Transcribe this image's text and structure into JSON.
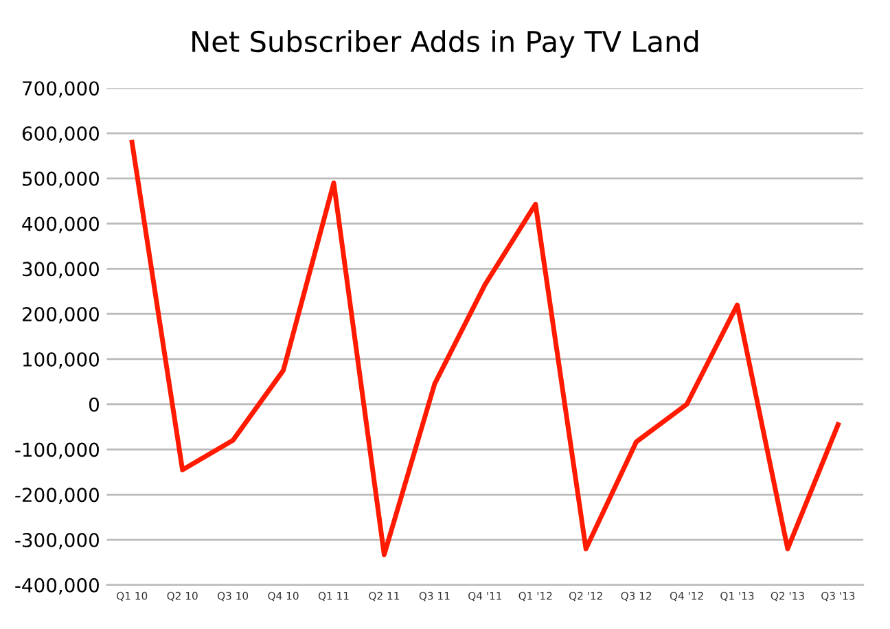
{
  "chart_data": {
    "type": "line",
    "title": "Net Subscriber Adds in Pay TV Land",
    "categories": [
      "Q1 10",
      "Q2 10",
      "Q3 10",
      "Q4 10",
      "Q1 11",
      "Q2 11",
      "Q3 11",
      "Q4 '11",
      "Q1 '12",
      "Q2 '12",
      "Q3 12",
      "Q4 '12",
      "Q1 '13",
      "Q2 '13",
      "Q3 '13"
    ],
    "series": [
      {
        "color": "#ff1a00",
        "values": [
          580000,
          -145000,
          -80000,
          75000,
          490000,
          -333000,
          45000,
          265000,
          443000,
          -320000,
          -83000,
          0,
          220000,
          -320000,
          -45000
        ]
      }
    ],
    "ylim": [
      -400000,
      700000
    ],
    "yticks": [
      {
        "value": -400000,
        "label": "-400,000"
      },
      {
        "value": -300000,
        "label": "-300,000"
      },
      {
        "value": -200000,
        "label": "-200,000"
      },
      {
        "value": -100000,
        "label": "-100,000"
      },
      0,
      {
        "value": 100000,
        "label": "100,000"
      },
      {
        "value": 200000,
        "label": "200,000"
      },
      {
        "value": 300000,
        "label": "300,000"
      },
      {
        "value": 400000,
        "label": "400,000"
      },
      {
        "value": 500000,
        "label": "500,000"
      },
      {
        "value": 600000,
        "label": "600,000"
      },
      {
        "value": 700000,
        "label": "700,000"
      }
    ],
    "grid": "y",
    "marker": "none",
    "line_style": "solid"
  }
}
